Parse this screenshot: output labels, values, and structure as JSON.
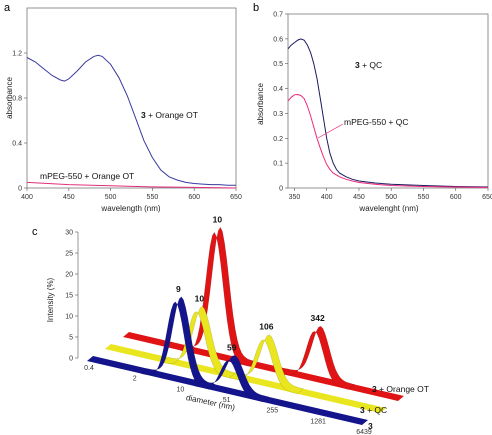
{
  "colors": {
    "blue": "#3a3aa0",
    "magenta": "#e0307a",
    "navy": "#14148c",
    "yellow": "#e9e51e",
    "red": "#e01414"
  },
  "chart_data": [
    {
      "panel": "a",
      "type": "line",
      "xlabel": "wavelength (nm)",
      "ylabel": "absorbance",
      "xlim": [
        400,
        650
      ],
      "ylim": [
        0,
        1.6
      ],
      "x_ticks": [
        "400",
        "450",
        "500",
        "550",
        "600",
        "650"
      ],
      "y_ticks": [
        "0",
        "0.4",
        "0.8",
        "1.2"
      ],
      "series": [
        {
          "name": "3 + Orange OT",
          "name_num": "3",
          "name_rest": " + Orange OT",
          "color": "#3a3aa0",
          "x": [
            400,
            410,
            420,
            430,
            440,
            445,
            450,
            460,
            470,
            480,
            485,
            490,
            500,
            510,
            520,
            530,
            540,
            550,
            560,
            570,
            580,
            590,
            600,
            610,
            620,
            630,
            640,
            650
          ],
          "y": [
            1.16,
            1.12,
            1.06,
            1.0,
            0.96,
            0.95,
            0.97,
            1.04,
            1.12,
            1.17,
            1.18,
            1.17,
            1.1,
            0.98,
            0.82,
            0.62,
            0.42,
            0.27,
            0.16,
            0.1,
            0.07,
            0.05,
            0.04,
            0.035,
            0.03,
            0.03,
            0.025,
            0.025
          ]
        },
        {
          "name": "mPEG-550 + Orange OT",
          "color": "#e0307a",
          "x": [
            400,
            450,
            500,
            550,
            600,
            650
          ],
          "y": [
            0.05,
            0.03,
            0.02,
            0.01,
            0.005,
            0.0
          ]
        }
      ]
    },
    {
      "panel": "b",
      "type": "line",
      "xlabel": "wavelenght (nm)",
      "ylabel": "absorbance",
      "xlim": [
        340,
        650
      ],
      "ylim": [
        0,
        0.7
      ],
      "x_ticks": [
        "350",
        "400",
        "450",
        "500",
        "550",
        "600",
        "650"
      ],
      "y_ticks": [
        "0",
        "0.1",
        "0.2",
        "0.3",
        "0.4",
        "0.5",
        "0.6",
        "0.7"
      ],
      "series": [
        {
          "name": "3 + QC",
          "name_num": "3",
          "name_rest": " + QC",
          "color": "#1a1a60",
          "x": [
            340,
            345,
            350,
            355,
            360,
            365,
            370,
            375,
            380,
            385,
            390,
            395,
            400,
            405,
            410,
            415,
            420,
            430,
            440,
            450,
            475,
            500,
            550,
            600,
            650
          ],
          "y": [
            0.56,
            0.575,
            0.585,
            0.595,
            0.6,
            0.595,
            0.575,
            0.545,
            0.5,
            0.44,
            0.36,
            0.28,
            0.2,
            0.14,
            0.1,
            0.075,
            0.06,
            0.045,
            0.035,
            0.028,
            0.02,
            0.015,
            0.01,
            0.006,
            0.004
          ]
        },
        {
          "name": "mPEG-550 + QC",
          "color": "#ee2a7b",
          "x": [
            340,
            345,
            350,
            355,
            360,
            365,
            370,
            375,
            380,
            385,
            390,
            395,
            400,
            405,
            410,
            420,
            430,
            440,
            450,
            475,
            500,
            550,
            600,
            650
          ],
          "y": [
            0.35,
            0.365,
            0.375,
            0.376,
            0.372,
            0.36,
            0.33,
            0.29,
            0.245,
            0.2,
            0.16,
            0.125,
            0.095,
            0.075,
            0.06,
            0.045,
            0.035,
            0.028,
            0.022,
            0.015,
            0.01,
            0.006,
            0.004,
            0.002
          ]
        }
      ]
    },
    {
      "panel": "c",
      "type": "area",
      "xlabel": "diameter (nm)",
      "ylabel": "Intensity (%)",
      "x_ticks": [
        "0.4",
        "2",
        "10",
        "51",
        "255",
        "1281",
        "6439"
      ],
      "y_ticks": [
        "0",
        "5",
        "10",
        "15",
        "20",
        "25",
        "30"
      ],
      "ylim": [
        0,
        30
      ],
      "series": [
        {
          "name": "3",
          "label": "3",
          "color": "#14148c",
          "peaks": [
            {
              "x": 9,
              "y": 19,
              "label": "9"
            },
            {
              "x": 59,
              "y": 8,
              "label": "59"
            }
          ]
        },
        {
          "name": "3 + QC",
          "label_num": "3",
          "label_rest": " + QC",
          "color": "#e9e51e",
          "peaks": [
            {
              "x": 10,
              "y": 14,
              "label": "10"
            },
            {
              "x": 106,
              "y": 11,
              "label": "106"
            }
          ]
        },
        {
          "name": "3 + Orange OT",
          "label_num": "3",
          "label_rest": " + Orange OT",
          "color": "#e01414",
          "peaks": [
            {
              "x": 10,
              "y": 30,
              "label": "10"
            },
            {
              "x": 342,
              "y": 12,
              "label": "342"
            }
          ]
        }
      ]
    }
  ]
}
